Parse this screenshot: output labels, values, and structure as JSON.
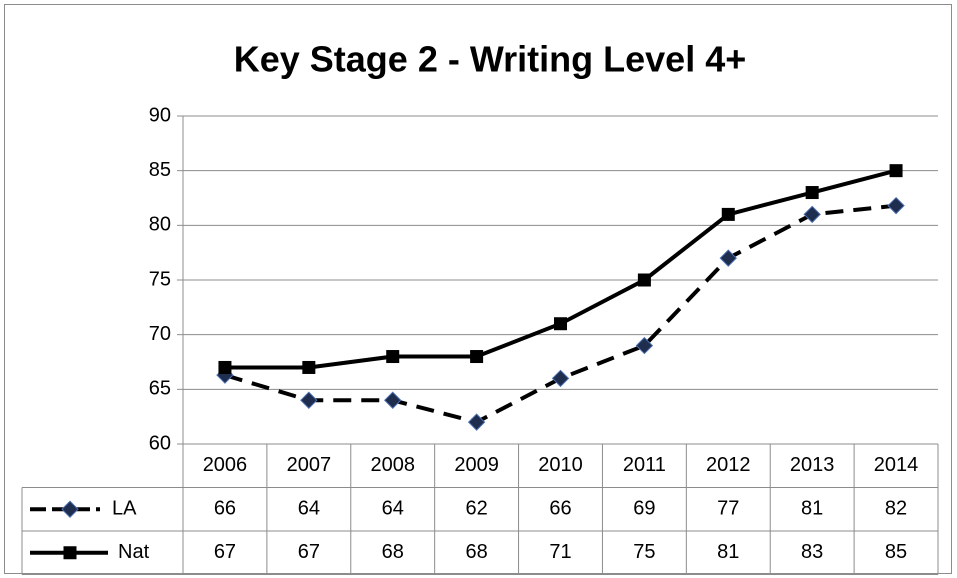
{
  "chart_data": {
    "type": "line",
    "title": "Key Stage 2 - Writing Level 4+",
    "categories": [
      "2006",
      "2007",
      "2008",
      "2009",
      "2010",
      "2011",
      "2012",
      "2013",
      "2014"
    ],
    "series": [
      {
        "name": "LA",
        "color": "#000000",
        "marker": "diamond",
        "marker_color": "#1f2d4f",
        "dashed": true,
        "values": [
          66.3,
          64,
          64,
          62,
          66,
          69,
          77,
          81,
          81.8
        ],
        "value_labels": [
          "66",
          "64",
          "64",
          "62",
          "66",
          "69",
          "77",
          "81",
          "82"
        ]
      },
      {
        "name": "Nat",
        "color": "#000000",
        "marker": "square",
        "marker_color": "#000000",
        "dashed": false,
        "values": [
          67,
          67,
          68,
          68,
          71,
          75,
          81,
          83,
          85
        ]
      }
    ],
    "ylim": [
      60,
      90
    ],
    "yticks": [
      60,
      65,
      70,
      75,
      80,
      85,
      90
    ],
    "grid": true
  }
}
